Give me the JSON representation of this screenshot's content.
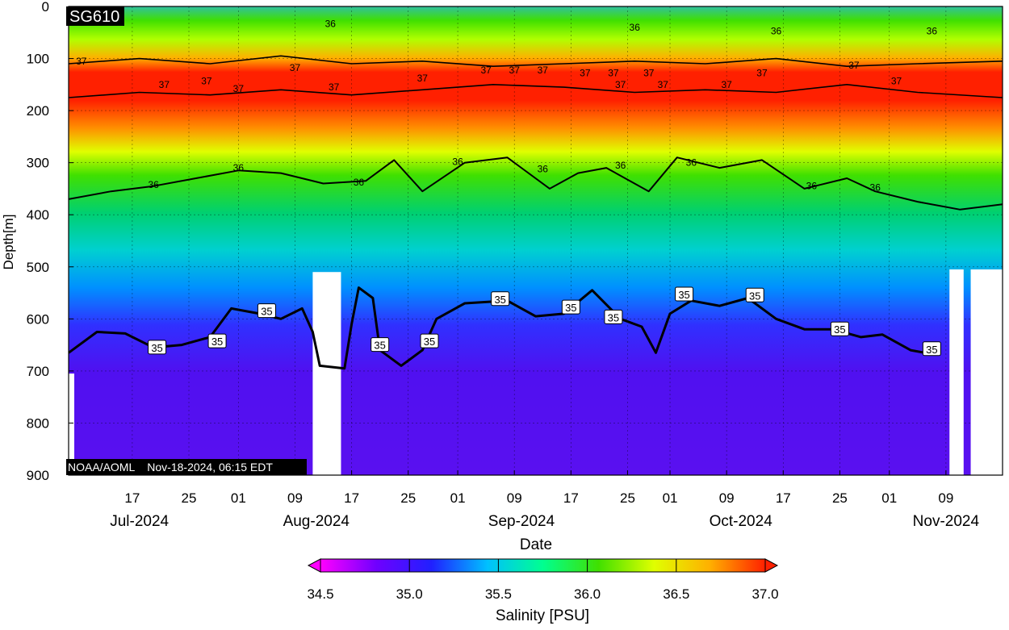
{
  "chart_data": {
    "type": "heatmap",
    "plot_label": "SG610",
    "credit": "NOAA/AOML    Nov-18-2024, 06:15 EDT",
    "xlabel": "Date",
    "ylabel": "Depth[m]",
    "ylim": [
      0,
      900
    ],
    "y_reversed": true,
    "y_ticks": [
      0,
      100,
      200,
      300,
      400,
      500,
      600,
      700,
      800,
      900
    ],
    "x_range_days": [
      0,
      132
    ],
    "x_ticks": [
      {
        "day": 9,
        "label": "17"
      },
      {
        "day": 17,
        "label": "25"
      },
      {
        "day": 24,
        "label": "01"
      },
      {
        "day": 32,
        "label": "09"
      },
      {
        "day": 40,
        "label": "17"
      },
      {
        "day": 48,
        "label": "25"
      },
      {
        "day": 55,
        "label": "01"
      },
      {
        "day": 63,
        "label": "09"
      },
      {
        "day": 71,
        "label": "17"
      },
      {
        "day": 79,
        "label": "25"
      },
      {
        "day": 85,
        "label": "01"
      },
      {
        "day": 93,
        "label": "09"
      },
      {
        "day": 101,
        "label": "17"
      },
      {
        "day": 109,
        "label": "25"
      },
      {
        "day": 116,
        "label": "01"
      },
      {
        "day": 124,
        "label": "09"
      }
    ],
    "month_labels": [
      {
        "day": 10,
        "label": "Jul-2024"
      },
      {
        "day": 35,
        "label": "Aug-2024"
      },
      {
        "day": 64,
        "label": "Sep-2024"
      },
      {
        "day": 95,
        "label": "Oct-2024"
      },
      {
        "day": 124,
        "label": "Nov-2024"
      }
    ],
    "colorbar": {
      "label": "Salinity [PSU]",
      "range": [
        34.5,
        37.0
      ],
      "ticks": [
        "34.5",
        "35.0",
        "35.5",
        "36.0",
        "36.5",
        "37.0"
      ],
      "colors": [
        "#ff00ff",
        "#7000ff",
        "#2020ff",
        "#00c0ff",
        "#00ff90",
        "#40e000",
        "#e0ff00",
        "#ffb000",
        "#ff2000"
      ],
      "extend": "both"
    },
    "contour_labels": [
      {
        "text": "37",
        "day": 1.8,
        "depth": 105
      },
      {
        "text": "37",
        "day": 13.5,
        "depth": 150
      },
      {
        "text": "37",
        "day": 19.5,
        "depth": 143
      },
      {
        "text": "37",
        "day": 32,
        "depth": 118
      },
      {
        "text": "37",
        "day": 24,
        "depth": 158
      },
      {
        "text": "37",
        "day": 37.5,
        "depth": 155
      },
      {
        "text": "37",
        "day": 50,
        "depth": 138
      },
      {
        "text": "37",
        "day": 59,
        "depth": 122
      },
      {
        "text": "37",
        "day": 63,
        "depth": 122
      },
      {
        "text": "37",
        "day": 67,
        "depth": 122
      },
      {
        "text": "37",
        "day": 73,
        "depth": 128
      },
      {
        "text": "37",
        "day": 77,
        "depth": 128
      },
      {
        "text": "37",
        "day": 82,
        "depth": 128
      },
      {
        "text": "37",
        "day": 78,
        "depth": 150
      },
      {
        "text": "37",
        "day": 84,
        "depth": 150
      },
      {
        "text": "37",
        "day": 93,
        "depth": 150
      },
      {
        "text": "37",
        "day": 98,
        "depth": 128
      },
      {
        "text": "37",
        "day": 111,
        "depth": 113
      },
      {
        "text": "37",
        "day": 117,
        "depth": 143
      },
      {
        "text": "36",
        "day": 37,
        "depth": 33
      },
      {
        "text": "36",
        "day": 80,
        "depth": 40
      },
      {
        "text": "36",
        "day": 100,
        "depth": 47
      },
      {
        "text": "36",
        "day": 122,
        "depth": 47
      },
      {
        "text": "36",
        "day": 12,
        "depth": 342
      },
      {
        "text": "36",
        "day": 24,
        "depth": 310
      },
      {
        "text": "36",
        "day": 41,
        "depth": 338
      },
      {
        "text": "36",
        "day": 55,
        "depth": 298
      },
      {
        "text": "36",
        "day": 67,
        "depth": 312
      },
      {
        "text": "36",
        "day": 78,
        "depth": 305
      },
      {
        "text": "36",
        "day": 88,
        "depth": 300
      },
      {
        "text": "36",
        "day": 105,
        "depth": 345
      },
      {
        "text": "36",
        "day": 114,
        "depth": 348
      },
      {
        "text": "35",
        "day": 12.5,
        "depth": 655
      },
      {
        "text": "35",
        "day": 21,
        "depth": 643
      },
      {
        "text": "35",
        "day": 28,
        "depth": 585
      },
      {
        "text": "35",
        "day": 44,
        "depth": 650
      },
      {
        "text": "35",
        "day": 51,
        "depth": 643
      },
      {
        "text": "35",
        "day": 61,
        "depth": 562
      },
      {
        "text": "35",
        "day": 71,
        "depth": 578
      },
      {
        "text": "35",
        "day": 77,
        "depth": 597
      },
      {
        "text": "35",
        "day": 87,
        "depth": 553
      },
      {
        "text": "35",
        "day": 97,
        "depth": 555
      },
      {
        "text": "35",
        "day": 109,
        "depth": 620
      },
      {
        "text": "35",
        "day": 122,
        "depth": 658
      }
    ],
    "isoline_35_m": [
      {
        "day": 0,
        "depth": 665
      },
      {
        "day": 4,
        "depth": 625
      },
      {
        "day": 8,
        "depth": 628
      },
      {
        "day": 12,
        "depth": 655
      },
      {
        "day": 16,
        "depth": 650
      },
      {
        "day": 20,
        "depth": 635
      },
      {
        "day": 23,
        "depth": 580
      },
      {
        "day": 27,
        "depth": 590
      },
      {
        "day": 30,
        "depth": 600
      },
      {
        "day": 33,
        "depth": 580
      },
      {
        "day": 34.5,
        "depth": 625
      },
      {
        "day": 35.5,
        "depth": 690
      },
      {
        "day": 39,
        "depth": 695
      },
      {
        "day": 40,
        "depth": 610
      },
      {
        "day": 41,
        "depth": 540
      },
      {
        "day": 43,
        "depth": 560
      },
      {
        "day": 44,
        "depth": 660
      },
      {
        "day": 47,
        "depth": 690
      },
      {
        "day": 50,
        "depth": 660
      },
      {
        "day": 52,
        "depth": 600
      },
      {
        "day": 56,
        "depth": 570
      },
      {
        "day": 62,
        "depth": 565
      },
      {
        "day": 66,
        "depth": 595
      },
      {
        "day": 70,
        "depth": 590
      },
      {
        "day": 74,
        "depth": 545
      },
      {
        "day": 78,
        "depth": 600
      },
      {
        "day": 81,
        "depth": 615
      },
      {
        "day": 83,
        "depth": 665
      },
      {
        "day": 85,
        "depth": 590
      },
      {
        "day": 88,
        "depth": 565
      },
      {
        "day": 92,
        "depth": 575
      },
      {
        "day": 96,
        "depth": 560
      },
      {
        "day": 100,
        "depth": 600
      },
      {
        "day": 104,
        "depth": 620
      },
      {
        "day": 108,
        "depth": 620
      },
      {
        "day": 112,
        "depth": 635
      },
      {
        "day": 115,
        "depth": 630
      },
      {
        "day": 119,
        "depth": 660
      },
      {
        "day": 121,
        "depth": 665
      }
    ],
    "isoline_36_m": [
      {
        "day": 0,
        "depth": 370
      },
      {
        "day": 6,
        "depth": 355
      },
      {
        "day": 12,
        "depth": 345
      },
      {
        "day": 18,
        "depth": 330
      },
      {
        "day": 24,
        "depth": 315
      },
      {
        "day": 30,
        "depth": 320
      },
      {
        "day": 36,
        "depth": 340
      },
      {
        "day": 42,
        "depth": 335
      },
      {
        "day": 46,
        "depth": 295
      },
      {
        "day": 50,
        "depth": 355
      },
      {
        "day": 56,
        "depth": 300
      },
      {
        "day": 62,
        "depth": 290
      },
      {
        "day": 68,
        "depth": 350
      },
      {
        "day": 72,
        "depth": 320
      },
      {
        "day": 76,
        "depth": 310
      },
      {
        "day": 82,
        "depth": 355
      },
      {
        "day": 86,
        "depth": 290
      },
      {
        "day": 92,
        "depth": 310
      },
      {
        "day": 98,
        "depth": 295
      },
      {
        "day": 104,
        "depth": 350
      },
      {
        "day": 110,
        "depth": 330
      },
      {
        "day": 114,
        "depth": 355
      },
      {
        "day": 120,
        "depth": 375
      },
      {
        "day": 126,
        "depth": 390
      },
      {
        "day": 132,
        "depth": 380
      }
    ],
    "isoline_37_upper_m": [
      {
        "day": 0,
        "depth": 110
      },
      {
        "day": 10,
        "depth": 100
      },
      {
        "day": 20,
        "depth": 110
      },
      {
        "day": 30,
        "depth": 95
      },
      {
        "day": 40,
        "depth": 110
      },
      {
        "day": 50,
        "depth": 105
      },
      {
        "day": 60,
        "depth": 115
      },
      {
        "day": 70,
        "depth": 110
      },
      {
        "day": 80,
        "depth": 105
      },
      {
        "day": 90,
        "depth": 110
      },
      {
        "day": 100,
        "depth": 100
      },
      {
        "day": 110,
        "depth": 115
      },
      {
        "day": 120,
        "depth": 110
      },
      {
        "day": 132,
        "depth": 105
      }
    ],
    "isoline_37_lower_m": [
      {
        "day": 0,
        "depth": 175
      },
      {
        "day": 10,
        "depth": 165
      },
      {
        "day": 20,
        "depth": 170
      },
      {
        "day": 30,
        "depth": 160
      },
      {
        "day": 40,
        "depth": 170
      },
      {
        "day": 50,
        "depth": 160
      },
      {
        "day": 60,
        "depth": 150
      },
      {
        "day": 70,
        "depth": 155
      },
      {
        "day": 80,
        "depth": 165
      },
      {
        "day": 90,
        "depth": 160
      },
      {
        "day": 100,
        "depth": 165
      },
      {
        "day": 110,
        "depth": 150
      },
      {
        "day": 120,
        "depth": 165
      },
      {
        "day": 132,
        "depth": 175
      }
    ],
    "data_gaps": [
      {
        "day_start": 34.5,
        "day_end": 38.5,
        "depth_from": 510
      },
      {
        "day_start": 124.5,
        "day_end": 126.5,
        "depth_from": 505
      },
      {
        "day_start": 127.5,
        "day_end": 132,
        "depth_from": 505
      },
      {
        "day_start": 0,
        "day_end": 0.8,
        "depth_from": 705
      }
    ]
  }
}
